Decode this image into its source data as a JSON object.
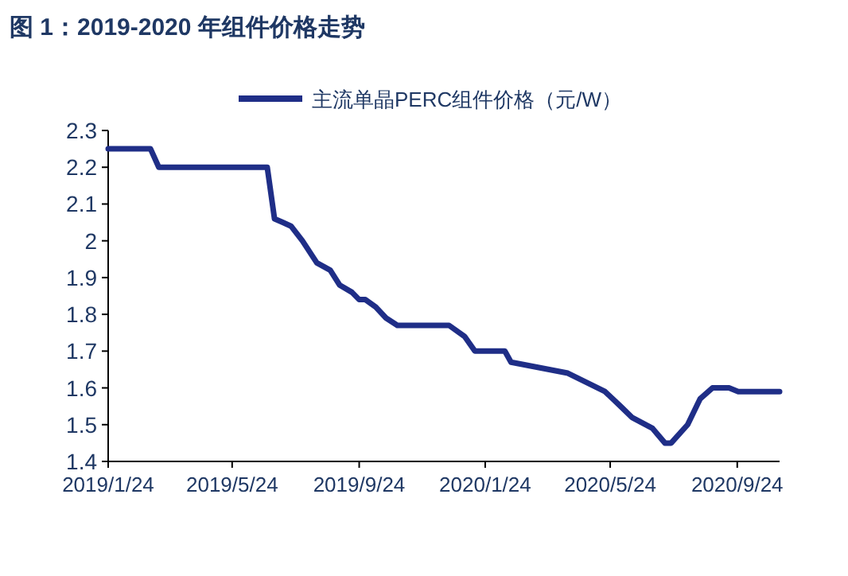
{
  "chart_data": {
    "type": "line",
    "title": "图 1：2019-2020 年组件价格走势",
    "x": [
      "2019-01-24",
      "2019-03-06",
      "2019-03-14",
      "2019-06-27",
      "2019-07-04",
      "2019-07-12",
      "2019-07-20",
      "2019-07-31",
      "2019-08-14",
      "2019-08-27",
      "2019-09-05",
      "2019-09-17",
      "2019-09-24",
      "2019-09-30",
      "2019-10-10",
      "2019-10-20",
      "2019-10-31",
      "2019-12-20",
      "2020-01-04",
      "2020-01-14",
      "2020-02-12",
      "2020-02-18",
      "2020-04-13",
      "2020-05-19",
      "2020-06-03",
      "2020-06-14",
      "2020-07-04",
      "2020-07-16",
      "2020-07-22",
      "2020-08-07",
      "2020-08-19",
      "2020-08-31",
      "2020-09-16",
      "2020-09-25",
      "2020-11-04"
    ],
    "series": [
      {
        "name": "主流单晶PERC组件价格（元/W）",
        "color": "#1f2e87",
        "values": [
          2.25,
          2.25,
          2.2,
          2.2,
          2.06,
          2.05,
          2.04,
          2.0,
          1.94,
          1.92,
          1.88,
          1.86,
          1.84,
          1.84,
          1.82,
          1.79,
          1.77,
          1.77,
          1.74,
          1.7,
          1.7,
          1.67,
          1.64,
          1.59,
          1.55,
          1.52,
          1.49,
          1.45,
          1.45,
          1.5,
          1.57,
          1.6,
          1.6,
          1.59,
          1.59
        ]
      }
    ],
    "xlim": [
      "2019-01-24",
      "2020-11-04"
    ],
    "xticks": [
      {
        "value": "2019-01-24",
        "label": "2019/1/24"
      },
      {
        "value": "2019-05-24",
        "label": "2019/5/24"
      },
      {
        "value": "2019-09-24",
        "label": "2019/9/24"
      },
      {
        "value": "2020-01-24",
        "label": "2020/1/24"
      },
      {
        "value": "2020-05-24",
        "label": "2020/5/24"
      },
      {
        "value": "2020-09-24",
        "label": "2020/9/24"
      }
    ],
    "ylim": [
      1.4,
      2.3
    ],
    "yticks": [
      1.4,
      1.5,
      1.6,
      1.7,
      1.8,
      1.9,
      2,
      2.1,
      2.2,
      2.3
    ],
    "legend": "top",
    "grid": false,
    "marker": "none",
    "line_style": "solid"
  }
}
